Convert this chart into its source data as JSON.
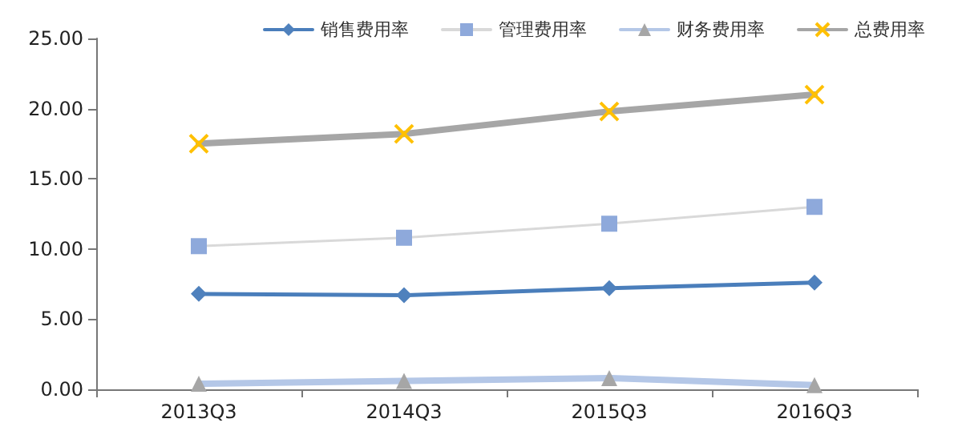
{
  "chart_data": {
    "type": "line",
    "categories": [
      "2013Q3",
      "2014Q3",
      "2015Q3",
      "2016Q3"
    ],
    "series": [
      {
        "name": "销售费用率",
        "color": "#4f81bd",
        "marker": "diamond",
        "values": [
          6.8,
          6.7,
          7.2,
          7.6
        ]
      },
      {
        "name": "管理费用率",
        "color": "#8ea9db",
        "marker": "square",
        "values": [
          10.2,
          10.8,
          11.8,
          13.0
        ]
      },
      {
        "name": "财务费用率",
        "color": "#a6a6a6",
        "marker": "triangle",
        "values": [
          0.4,
          0.6,
          0.8,
          0.3
        ]
      },
      {
        "name": "总费用率",
        "color": "#ffc000",
        "marker": "cross",
        "values": [
          17.5,
          18.2,
          19.8,
          21.0
        ]
      }
    ],
    "ylim": [
      0,
      25
    ],
    "yticks": [
      {
        "value": 0,
        "label": "0.00"
      },
      {
        "value": 5,
        "label": "5.00"
      },
      {
        "value": 10,
        "label": "10.00"
      },
      {
        "value": 15,
        "label": "15.00"
      },
      {
        "value": 20,
        "label": "20.00"
      },
      {
        "value": 25,
        "label": "25.00"
      }
    ],
    "grid": false,
    "legend": "top right"
  }
}
